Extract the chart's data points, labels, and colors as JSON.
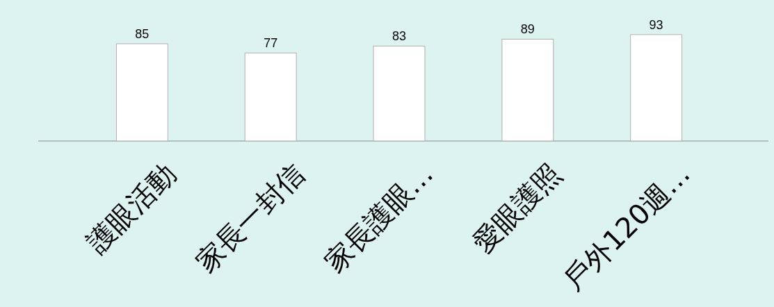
{
  "chart_data": {
    "type": "bar",
    "categories": [
      "護眼活動",
      "家長一封信",
      "家長護眼…",
      "愛眼護照",
      "戶外120週…"
    ],
    "values": [
      85,
      77,
      83,
      89,
      93
    ],
    "color": "#ffffff",
    "data_labels": true
  }
}
